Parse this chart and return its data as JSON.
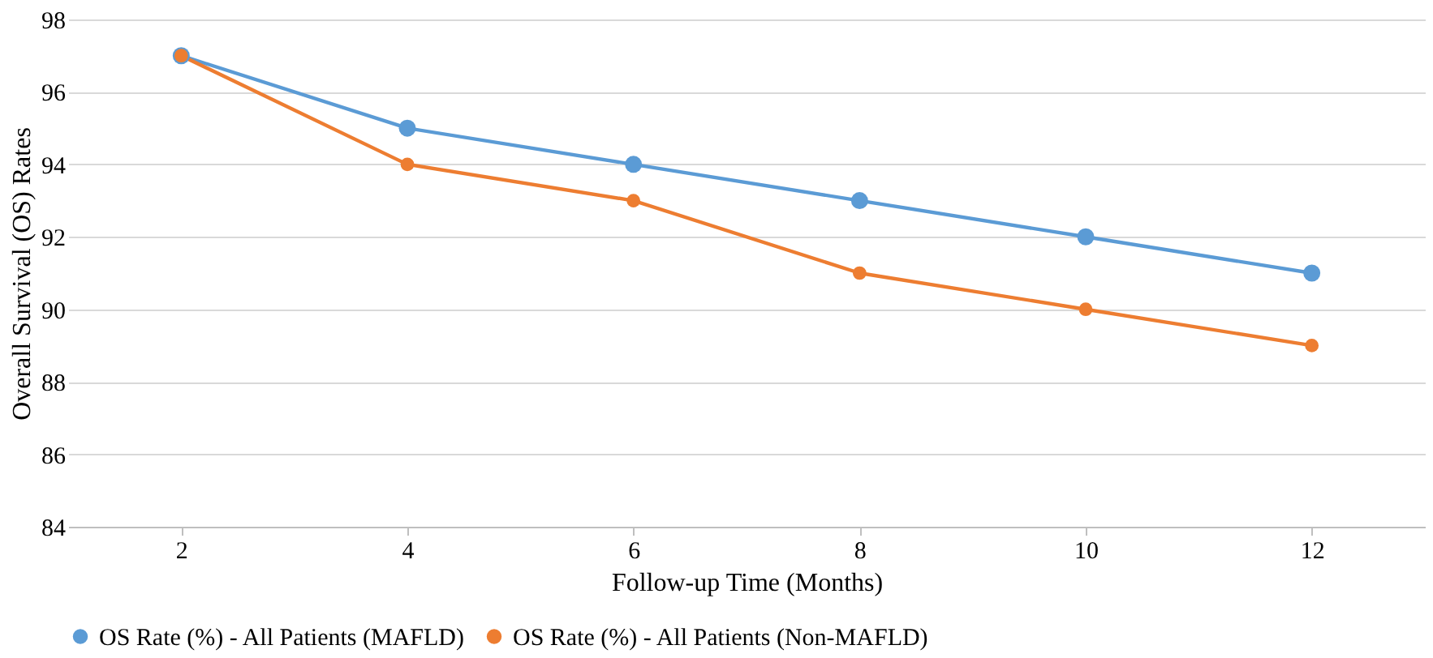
{
  "chart_data": {
    "type": "line",
    "xlabel": "Follow-up Time (Months)",
    "ylabel": "Overall Survival (OS) Rates",
    "categories": [
      "2",
      "4",
      "6",
      "8",
      "10",
      "12"
    ],
    "series": [
      {
        "name": "OS Rate (%) - All Patients (MAFLD)",
        "color": "#5b9bd5",
        "values": [
          97,
          95,
          94,
          93,
          92,
          91
        ]
      },
      {
        "name": "OS Rate (%) - All Patients (Non-MAFLD)",
        "color": "#ed7d31",
        "values": [
          97,
          94,
          93,
          91,
          90,
          89
        ]
      }
    ],
    "ylim": [
      84,
      98
    ],
    "yticks": [
      84,
      86,
      88,
      90,
      92,
      94,
      96,
      98
    ],
    "grid": "y",
    "legend": "bottom",
    "marker": "circle",
    "line_style": "solid"
  }
}
